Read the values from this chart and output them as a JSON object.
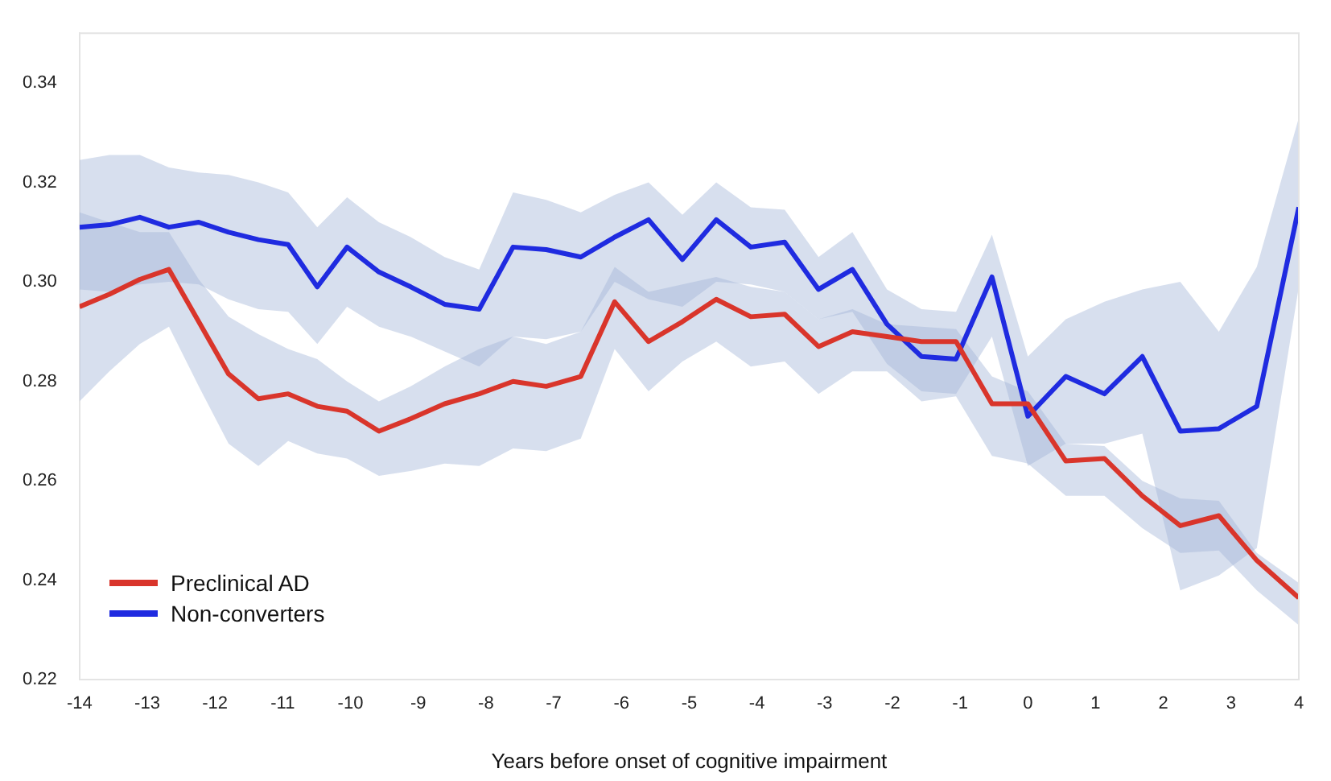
{
  "chart_data": {
    "type": "line",
    "xlabel": "Years before onset of cognitive impairment",
    "x": [
      -14,
      -13.56,
      -13.11,
      -12.68,
      -12.24,
      -11.8,
      -11.36,
      -10.92,
      -10.49,
      -10.05,
      -9.58,
      -9.11,
      -8.61,
      -8.1,
      -7.6,
      -7.11,
      -6.6,
      -6.1,
      -5.6,
      -5.1,
      -4.6,
      -4.09,
      -3.59,
      -3.09,
      -2.59,
      -2.08,
      -1.57,
      -1.06,
      -0.53,
      0,
      0.56,
      1.13,
      1.69,
      2.25,
      2.82,
      3.38,
      4
    ],
    "series": [
      {
        "name": "Preclinical AD",
        "color": "#d9352b",
        "values": [
          0.295,
          0.2975,
          0.3005,
          0.3025,
          0.292,
          0.2815,
          0.2765,
          0.2775,
          0.275,
          0.274,
          0.27,
          0.2725,
          0.2755,
          0.2775,
          0.28,
          0.279,
          0.281,
          0.296,
          0.288,
          0.292,
          0.2965,
          0.293,
          0.2935,
          0.287,
          0.29,
          0.289,
          0.288,
          0.288,
          0.2755,
          0.2755,
          0.264,
          0.2645,
          0.257,
          0.251,
          0.253,
          0.244,
          0.2365
        ],
        "lower": [
          0.276,
          0.282,
          0.2875,
          0.291,
          0.279,
          0.2675,
          0.263,
          0.268,
          0.2655,
          0.2645,
          0.261,
          0.262,
          0.2635,
          0.263,
          0.2665,
          0.266,
          0.2685,
          0.2865,
          0.278,
          0.284,
          0.288,
          0.283,
          0.284,
          0.2775,
          0.282,
          0.282,
          0.276,
          0.277,
          0.265,
          0.2635,
          0.257,
          0.257,
          0.2505,
          0.2455,
          0.246,
          0.238,
          0.231
        ],
        "upper": [
          0.314,
          0.312,
          0.31,
          0.31,
          0.3005,
          0.293,
          0.2895,
          0.2865,
          0.2845,
          0.28,
          0.276,
          0.279,
          0.283,
          0.2865,
          0.289,
          0.2875,
          0.29,
          0.303,
          0.298,
          0.2995,
          0.301,
          0.299,
          0.298,
          0.2925,
          0.2945,
          0.2915,
          0.291,
          0.2905,
          0.281,
          0.278,
          0.2675,
          0.267,
          0.26,
          0.2565,
          0.256,
          0.2455,
          0.2395
        ]
      },
      {
        "name": "Non-converters",
        "color": "#1f2be0",
        "values": [
          0.311,
          0.3115,
          0.313,
          0.311,
          0.312,
          0.31,
          0.3085,
          0.3075,
          0.299,
          0.307,
          0.302,
          0.299,
          0.2955,
          0.2945,
          0.307,
          0.3065,
          0.305,
          0.309,
          0.3125,
          0.3045,
          0.3125,
          0.307,
          0.308,
          0.2985,
          0.3025,
          0.2915,
          0.285,
          0.2845,
          0.301,
          0.273,
          0.281,
          0.2775,
          0.285,
          0.27,
          0.2705,
          0.275,
          0.315
        ],
        "lower": [
          0.2985,
          0.298,
          0.2995,
          0.3,
          0.2995,
          0.2965,
          0.2945,
          0.294,
          0.2875,
          0.295,
          0.291,
          0.289,
          0.286,
          0.283,
          0.289,
          0.2885,
          0.29,
          0.3,
          0.2965,
          0.295,
          0.3,
          0.2995,
          0.298,
          0.2925,
          0.294,
          0.2835,
          0.278,
          0.2775,
          0.289,
          0.263,
          0.2675,
          0.2675,
          0.2695,
          0.238,
          0.241,
          0.2465,
          0.299
        ],
        "upper": [
          0.3245,
          0.3255,
          0.3255,
          0.323,
          0.322,
          0.3215,
          0.32,
          0.318,
          0.311,
          0.317,
          0.312,
          0.309,
          0.305,
          0.3025,
          0.318,
          0.3165,
          0.314,
          0.3175,
          0.32,
          0.3135,
          0.32,
          0.315,
          0.3145,
          0.305,
          0.31,
          0.2985,
          0.2945,
          0.294,
          0.3095,
          0.285,
          0.2925,
          0.296,
          0.2985,
          0.3,
          0.29,
          0.303,
          0.333
        ]
      }
    ],
    "xlim": [
      -14,
      4
    ],
    "xticks": [
      -14,
      -13,
      -12,
      -11,
      -10,
      -9,
      -8,
      -7,
      -6,
      -5,
      -4,
      -3,
      -2,
      -1,
      0,
      1,
      2,
      3,
      4
    ],
    "ylim": [
      0.22,
      0.35
    ],
    "yticks": [
      0.22,
      0.24,
      0.26,
      0.28,
      {
        "value": 0.3,
        "label": "0.30"
      },
      0.32,
      0.34
    ],
    "grid": false,
    "legend": "bottom left",
    "marker": "none",
    "line_style": "solid"
  }
}
